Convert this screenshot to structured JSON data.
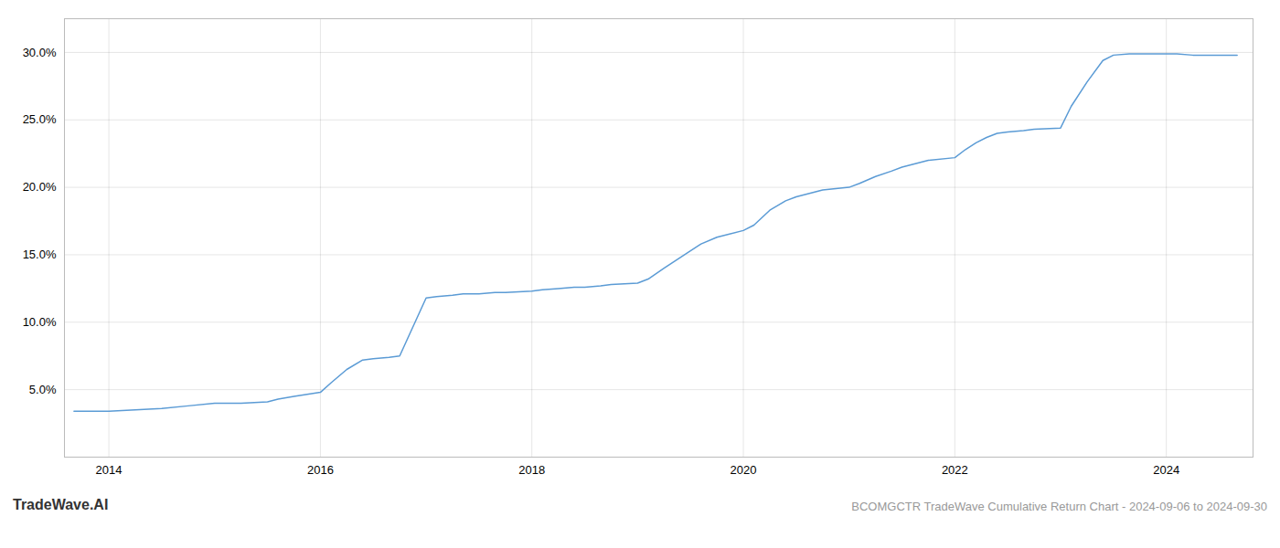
{
  "chart_data": {
    "type": "line",
    "title": "BCOMGCTR TradeWave Cumulative Return Chart - 2024-09-06 to 2024-09-30",
    "annotations": [
      "TradeWave.AI"
    ],
    "color": "#5b9bd5",
    "grid": true,
    "x": [
      2013.67,
      2013.75,
      2014.0,
      2014.25,
      2014.5,
      2014.75,
      2015.0,
      2015.1,
      2015.25,
      2015.5,
      2015.6,
      2015.75,
      2016.0,
      2016.1,
      2016.25,
      2016.4,
      2016.5,
      2016.65,
      2016.75,
      2017.0,
      2017.1,
      2017.25,
      2017.35,
      2017.5,
      2017.65,
      2017.75,
      2018.0,
      2018.1,
      2018.25,
      2018.4,
      2018.5,
      2018.65,
      2018.75,
      2019.0,
      2019.1,
      2019.25,
      2019.5,
      2019.6,
      2019.75,
      2020.0,
      2020.1,
      2020.25,
      2020.4,
      2020.5,
      2020.65,
      2020.75,
      2021.0,
      2021.1,
      2021.25,
      2021.4,
      2021.5,
      2021.65,
      2021.75,
      2022.0,
      2022.1,
      2022.2,
      2022.3,
      2022.4,
      2022.5,
      2022.65,
      2022.75,
      2023.0,
      2023.1,
      2023.25,
      2023.4,
      2023.5,
      2023.65,
      2023.75,
      2024.0,
      2024.1,
      2024.25,
      2024.5,
      2024.67
    ],
    "values": [
      0.034,
      0.034,
      0.034,
      0.035,
      0.036,
      0.038,
      0.04,
      0.04,
      0.04,
      0.041,
      0.043,
      0.045,
      0.048,
      0.055,
      0.065,
      0.072,
      0.073,
      0.074,
      0.075,
      0.118,
      0.119,
      0.12,
      0.121,
      0.121,
      0.122,
      0.122,
      0.123,
      0.124,
      0.125,
      0.126,
      0.126,
      0.127,
      0.128,
      0.129,
      0.132,
      0.14,
      0.153,
      0.158,
      0.163,
      0.168,
      0.172,
      0.183,
      0.19,
      0.193,
      0.196,
      0.198,
      0.2,
      0.203,
      0.208,
      0.212,
      0.215,
      0.218,
      0.22,
      0.222,
      0.228,
      0.233,
      0.237,
      0.24,
      0.241,
      0.242,
      0.243,
      0.244,
      0.26,
      0.278,
      0.294,
      0.298,
      0.299,
      0.299,
      0.299,
      0.299,
      0.298,
      0.298,
      0.298
    ],
    "xlim": [
      2013.58,
      2024.82
    ],
    "xticks": [
      2014,
      2016,
      2018,
      2020,
      2022,
      2024
    ],
    "ylim": [
      0.0,
      0.325
    ],
    "yticks": [
      {
        "value": 0.05,
        "label": "5.0%"
      },
      {
        "value": 0.1,
        "label": "10.0%"
      },
      {
        "value": 0.15,
        "label": "15.0%"
      },
      {
        "value": 0.2,
        "label": "20.0%"
      },
      {
        "value": 0.25,
        "label": "25.0%"
      },
      {
        "value": 0.3,
        "label": "30.0%"
      }
    ]
  }
}
